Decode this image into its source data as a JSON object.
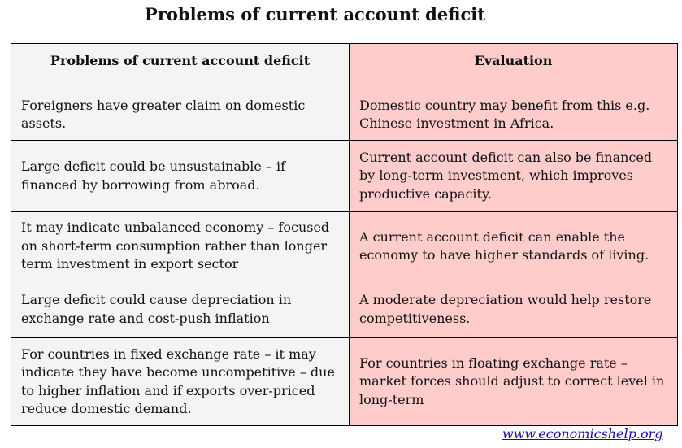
{
  "title": "Problems of current account deficit",
  "table": {
    "headers": [
      "Problems of current account deficit",
      "Evaluation"
    ],
    "rows": [
      {
        "problem": "Foreigners have greater claim on domestic assets.",
        "evaluation": "Domestic country may benefit from this e.g. Chinese investment in Africa."
      },
      {
        "problem": "Large deficit could be unsustainable – if financed by borrowing from abroad.",
        "evaluation": "Current account deficit can also be financed by long-term investment, which improves productive capacity."
      },
      {
        "problem": "It may indicate unbalanced economy – focused on short-term consumption rather than longer term investment in export sector",
        "evaluation": "A current account deficit can enable the economy to have higher standards of living."
      },
      {
        "problem": "Large deficit could cause depreciation in exchange rate and cost-push inflation",
        "evaluation": "A moderate depreciation would help restore competitiveness."
      },
      {
        "problem": "For countries in fixed exchange rate – it may indicate they have become uncompetitive – due to higher inflation and if exports over-priced reduce domestic demand.",
        "evaluation": "For countries in floating exchange rate – market forces should adjust to correct level in long-term"
      }
    ]
  },
  "source_link": "www.economicshelp.org",
  "colors": {
    "problem_column_bg": "#f4f4f4",
    "evaluation_column_bg": "#ffcccc",
    "link": "#1a0dab"
  }
}
